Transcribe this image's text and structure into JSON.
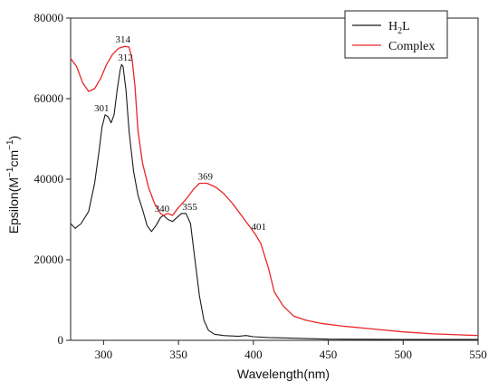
{
  "chart_data": {
    "type": "line",
    "xlabel": "Wavelength(nm)",
    "ylabel_parts": [
      "Epsilon(M",
      "−1",
      "cm",
      "−1",
      ")"
    ],
    "xlim": [
      278,
      550
    ],
    "ylim": [
      0,
      80000
    ],
    "x_ticks": [
      300,
      350,
      400,
      450,
      500,
      550
    ],
    "y_ticks": [
      0,
      20000,
      40000,
      60000,
      80000
    ],
    "x_tick_labels": [
      "300",
      "350",
      "400",
      "450",
      "500",
      "550"
    ],
    "y_tick_labels": [
      "0",
      "20000",
      "40000",
      "60000",
      "80000"
    ],
    "legend": {
      "position": "top-right",
      "entries": [
        {
          "label_parts": [
            "H",
            "2",
            "L"
          ],
          "color": "#1a1a1a"
        },
        {
          "label_parts": [
            "Complex"
          ],
          "color": "#e8262a"
        }
      ]
    },
    "series": [
      {
        "color": "#1a1a1a",
        "points": [
          [
            278,
            29000
          ],
          [
            281,
            27800
          ],
          [
            285,
            29000
          ],
          [
            290,
            32000
          ],
          [
            294,
            39000
          ],
          [
            297,
            47000
          ],
          [
            299,
            53000
          ],
          [
            301,
            56000
          ],
          [
            303,
            55500
          ],
          [
            305,
            54000
          ],
          [
            307,
            56000
          ],
          [
            309,
            62000
          ],
          [
            311,
            67000
          ],
          [
            312,
            68500
          ],
          [
            313,
            68000
          ],
          [
            315,
            62000
          ],
          [
            317,
            52000
          ],
          [
            320,
            42000
          ],
          [
            323,
            36000
          ],
          [
            326,
            32500
          ],
          [
            329,
            28500
          ],
          [
            332,
            27000
          ],
          [
            335,
            28500
          ],
          [
            338,
            30500
          ],
          [
            340,
            31000
          ],
          [
            343,
            30000
          ],
          [
            346,
            29500
          ],
          [
            349,
            30500
          ],
          [
            352,
            31500
          ],
          [
            355,
            31500
          ],
          [
            358,
            29000
          ],
          [
            361,
            20000
          ],
          [
            364,
            11000
          ],
          [
            367,
            5000
          ],
          [
            370,
            2500
          ],
          [
            374,
            1500
          ],
          [
            380,
            1200
          ],
          [
            390,
            1000
          ],
          [
            395,
            1200
          ],
          [
            400,
            900
          ],
          [
            410,
            700
          ],
          [
            450,
            300
          ],
          [
            500,
            200
          ],
          [
            550,
            200
          ]
        ]
      },
      {
        "color": "#e8262a",
        "points": [
          [
            278,
            70000
          ],
          [
            282,
            68000
          ],
          [
            286,
            64000
          ],
          [
            290,
            61800
          ],
          [
            294,
            62500
          ],
          [
            298,
            65000
          ],
          [
            302,
            68500
          ],
          [
            306,
            71000
          ],
          [
            310,
            72500
          ],
          [
            314,
            73000
          ],
          [
            317,
            72800
          ],
          [
            319,
            70000
          ],
          [
            321,
            63000
          ],
          [
            323,
            52000
          ],
          [
            326,
            44000
          ],
          [
            330,
            38000
          ],
          [
            334,
            34000
          ],
          [
            338,
            31500
          ],
          [
            340,
            31000
          ],
          [
            343,
            31500
          ],
          [
            346,
            31000
          ],
          [
            350,
            33000
          ],
          [
            355,
            35000
          ],
          [
            360,
            37500
          ],
          [
            364,
            39000
          ],
          [
            369,
            39000
          ],
          [
            375,
            38000
          ],
          [
            380,
            36500
          ],
          [
            386,
            34000
          ],
          [
            392,
            31000
          ],
          [
            397,
            28500
          ],
          [
            401,
            26500
          ],
          [
            405,
            24000
          ],
          [
            410,
            18000
          ],
          [
            414,
            12000
          ],
          [
            420,
            8500
          ],
          [
            427,
            6000
          ],
          [
            435,
            5000
          ],
          [
            445,
            4200
          ],
          [
            460,
            3500
          ],
          [
            480,
            2800
          ],
          [
            500,
            2100
          ],
          [
            520,
            1600
          ],
          [
            550,
            1200
          ]
        ]
      }
    ],
    "annotations": [
      {
        "text": "301",
        "x": 301,
        "y": 56000,
        "dx": -12,
        "dy": -4
      },
      {
        "text": "312",
        "x": 312,
        "y": 68500,
        "dx": -4,
        "dy": -4
      },
      {
        "text": "314",
        "x": 314,
        "y": 73000,
        "dx": -10,
        "dy": -4
      },
      {
        "text": "340",
        "x": 340,
        "y": 31000,
        "dx": -10,
        "dy": -4
      },
      {
        "text": "355",
        "x": 355,
        "y": 31500,
        "dx": -4,
        "dy": -4
      },
      {
        "text": "369",
        "x": 369,
        "y": 39000,
        "dx": -10,
        "dy": -4
      },
      {
        "text": "401",
        "x": 401,
        "y": 26500,
        "dx": -4,
        "dy": -4
      }
    ]
  }
}
